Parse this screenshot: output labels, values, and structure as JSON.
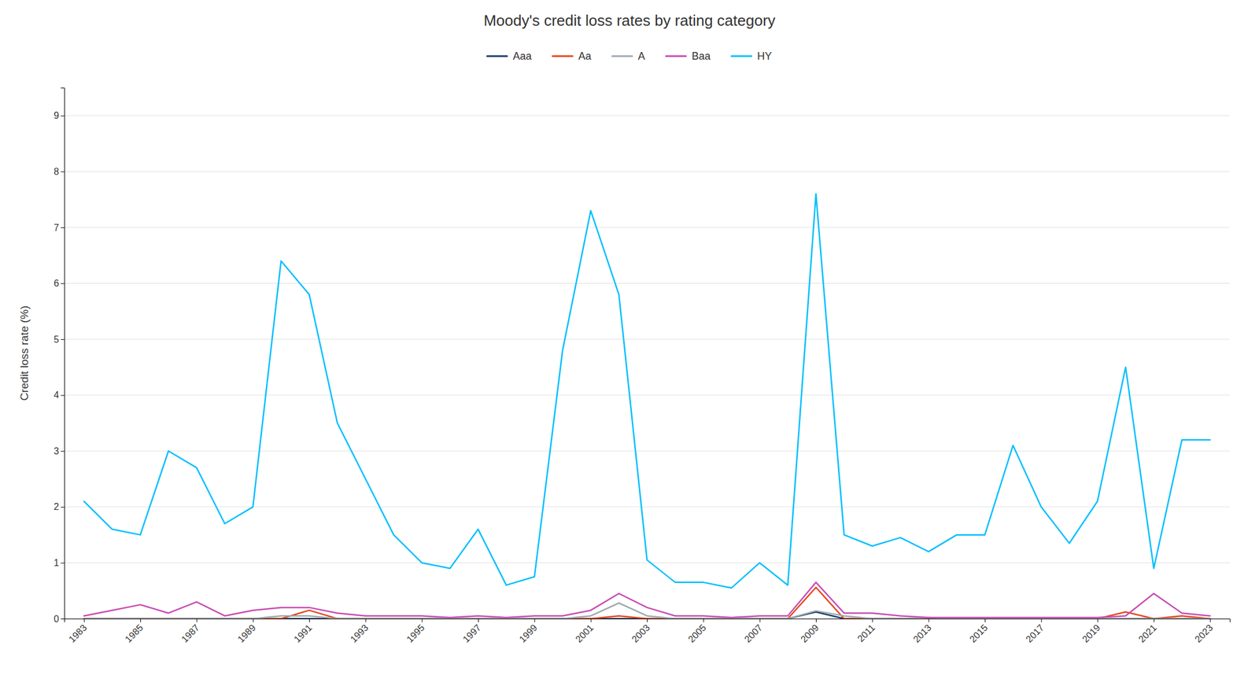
{
  "chart_data": {
    "type": "line",
    "title": "Moody's credit loss rates by rating category",
    "ylabel": "Credit loss rate (%)",
    "x": [
      1983,
      1984,
      1985,
      1986,
      1987,
      1988,
      1989,
      1990,
      1991,
      1992,
      1993,
      1994,
      1995,
      1996,
      1997,
      1998,
      1999,
      2000,
      2001,
      2002,
      2003,
      2004,
      2005,
      2006,
      2007,
      2008,
      2009,
      2010,
      2011,
      2012,
      2013,
      2014,
      2015,
      2016,
      2017,
      2018,
      2019,
      2020,
      2021,
      2022,
      2023
    ],
    "series": [
      {
        "name": "Aaa",
        "color": "#1b3a6b",
        "values": [
          0.0,
          0.0,
          0.0,
          0.0,
          0.0,
          0.0,
          0.0,
          0.0,
          0.0,
          0.0,
          0.0,
          0.0,
          0.0,
          0.0,
          0.0,
          0.0,
          0.0,
          0.0,
          0.0,
          0.0,
          0.0,
          0.0,
          0.0,
          0.0,
          0.0,
          0.0,
          0.12,
          0.0,
          0.0,
          0.0,
          0.0,
          0.0,
          0.0,
          0.0,
          0.0,
          0.0,
          0.0,
          0.0,
          0.0,
          0.0,
          0.0
        ]
      },
      {
        "name": "Aa",
        "color": "#e8451e",
        "values": [
          0.0,
          0.0,
          0.0,
          0.0,
          0.0,
          0.0,
          0.0,
          0.0,
          0.15,
          0.0,
          0.0,
          0.0,
          0.0,
          0.0,
          0.0,
          0.0,
          0.0,
          0.0,
          0.0,
          0.05,
          0.0,
          0.0,
          0.0,
          0.0,
          0.0,
          0.0,
          0.56,
          0.0,
          0.0,
          0.0,
          0.0,
          0.0,
          0.0,
          0.0,
          0.0,
          0.0,
          0.0,
          0.12,
          0.0,
          0.05,
          0.0
        ]
      },
      {
        "name": "A",
        "color": "#a0a8b0",
        "values": [
          0.0,
          0.0,
          0.0,
          0.0,
          0.0,
          0.0,
          0.0,
          0.05,
          0.05,
          0.0,
          0.0,
          0.0,
          0.0,
          0.0,
          0.0,
          0.0,
          0.0,
          0.0,
          0.05,
          0.28,
          0.05,
          0.0,
          0.0,
          0.0,
          0.0,
          0.0,
          0.14,
          0.05,
          0.0,
          0.0,
          0.02,
          0.0,
          0.0,
          0.0,
          0.0,
          0.0,
          0.0,
          0.0,
          0.0,
          0.0,
          0.0
        ]
      },
      {
        "name": "Baa",
        "color": "#c84bb4",
        "values": [
          0.05,
          0.15,
          0.25,
          0.1,
          0.3,
          0.05,
          0.15,
          0.2,
          0.2,
          0.1,
          0.05,
          0.05,
          0.05,
          0.02,
          0.05,
          0.02,
          0.05,
          0.05,
          0.15,
          0.45,
          0.2,
          0.05,
          0.05,
          0.02,
          0.05,
          0.05,
          0.65,
          0.1,
          0.1,
          0.05,
          0.02,
          0.02,
          0.02,
          0.02,
          0.02,
          0.02,
          0.02,
          0.05,
          0.45,
          0.1,
          0.05
        ]
      },
      {
        "name": "HY",
        "color": "#00bfff",
        "values": [
          2.1,
          1.6,
          1.5,
          3.0,
          2.7,
          1.7,
          2.0,
          6.4,
          5.8,
          3.5,
          2.5,
          1.5,
          1.0,
          0.9,
          1.6,
          0.6,
          0.75,
          4.8,
          7.3,
          5.8,
          1.05,
          0.65,
          0.65,
          0.55,
          1.0,
          0.6,
          7.6,
          1.5,
          1.3,
          1.45,
          1.2,
          1.5,
          1.5,
          3.1,
          2.0,
          1.35,
          2.1,
          4.5,
          0.9,
          3.2,
          3.2
        ]
      }
    ],
    "xlim": [
      1982.3,
      2023.7
    ],
    "xticks": [
      1983,
      1985,
      1987,
      1989,
      1991,
      1993,
      1995,
      1997,
      1999,
      2001,
      2003,
      2005,
      2007,
      2009,
      2011,
      2013,
      2015,
      2017,
      2019,
      2021,
      2023
    ],
    "ylim": [
      0,
      9.5
    ],
    "yticks": [
      0,
      1,
      2,
      3,
      4,
      5,
      6,
      7,
      8,
      9
    ],
    "grid": true,
    "legend": "top"
  }
}
